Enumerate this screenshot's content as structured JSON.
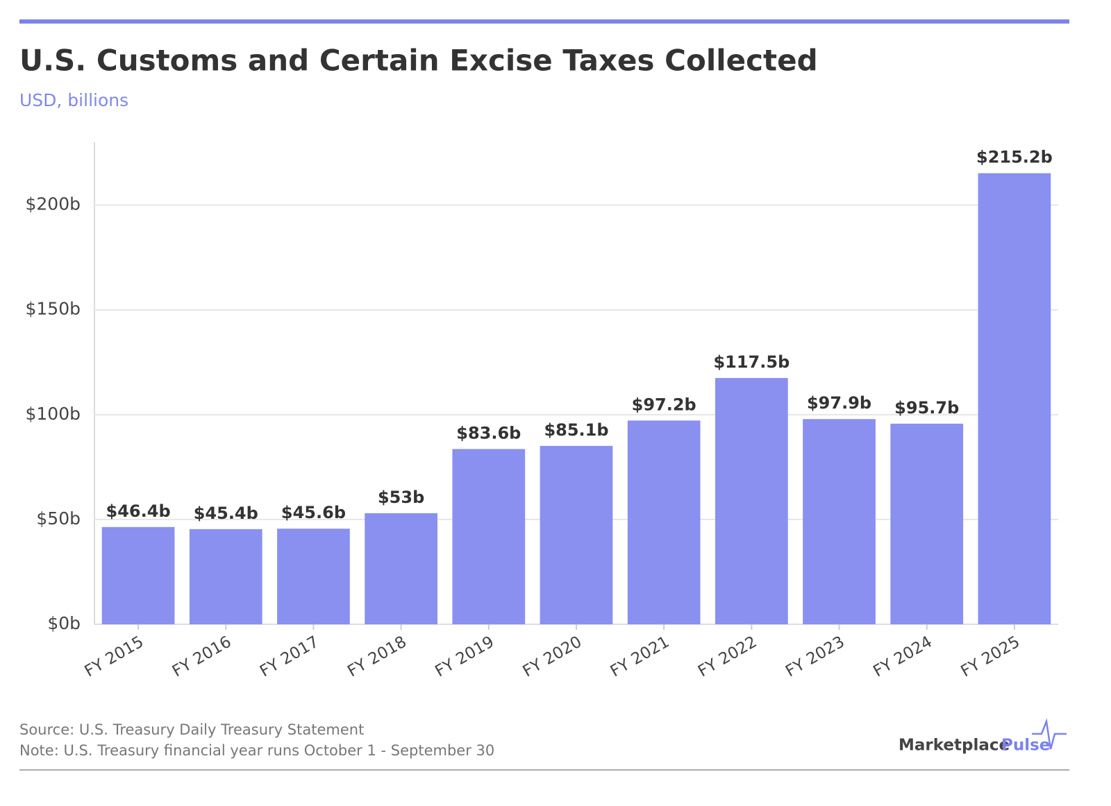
{
  "chart_data": {
    "type": "bar",
    "title": "U.S. Customs and Certain Excise Taxes Collected",
    "subtitle": "USD, billions",
    "categories": [
      "FY 2015",
      "FY 2016",
      "FY 2017",
      "FY 2018",
      "FY 2019",
      "FY 2020",
      "FY 2021",
      "FY 2022",
      "FY 2023",
      "FY 2024",
      "FY 2025"
    ],
    "values": [
      46.4,
      45.4,
      45.6,
      53,
      83.6,
      85.1,
      97.2,
      117.5,
      97.9,
      95.7,
      215.2
    ],
    "value_labels": [
      "$46.4b",
      "$45.4b",
      "$45.6b",
      "$53b",
      "$83.6b",
      "$85.1b",
      "$97.2b",
      "$117.5b",
      "$97.9b",
      "$95.7b",
      "$215.2b"
    ],
    "color": "#8a90f0",
    "ylim": [
      0,
      230
    ],
    "yticks": [
      {
        "value": 0,
        "label": "$0b"
      },
      {
        "value": 50,
        "label": "$50b"
      },
      {
        "value": 100,
        "label": "$100b"
      },
      {
        "value": 150,
        "label": "$150b"
      },
      {
        "value": 200,
        "label": "$200b"
      }
    ],
    "grid": true,
    "source": "Source: U.S. Treasury Daily Treasury Statement",
    "note": "Note: U.S. Treasury financial year runs October 1 - September 30"
  },
  "logo": {
    "name": "Marketplace",
    "accent": "Pulse"
  }
}
